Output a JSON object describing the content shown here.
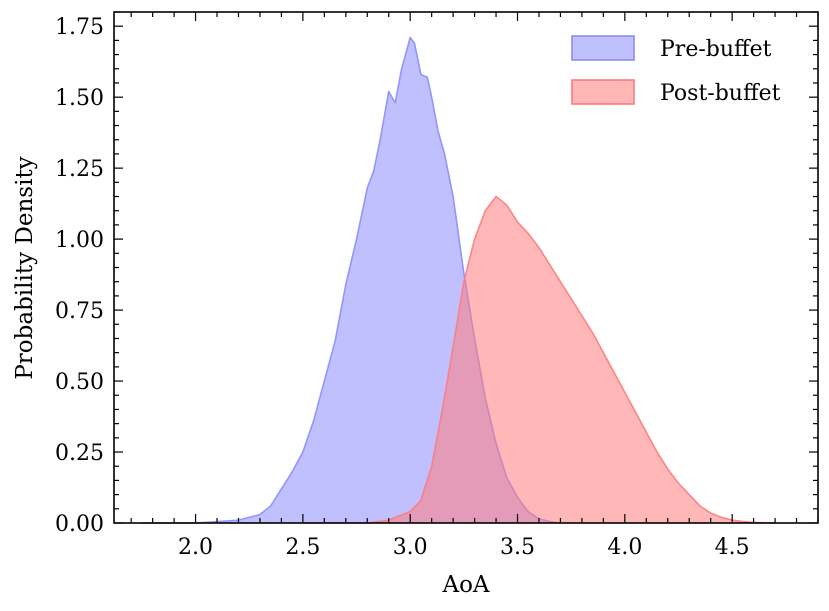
{
  "chart_data": {
    "type": "area",
    "xlabel": "AoA",
    "ylabel": "Probability Density",
    "xlim": [
      1.62,
      4.9
    ],
    "ylim": [
      0,
      1.8
    ],
    "xticks": [
      2.0,
      2.5,
      3.0,
      3.5,
      4.0,
      4.5
    ],
    "xtick_labels": [
      "2.0",
      "2.5",
      "3.0",
      "3.5",
      "4.0",
      "4.5"
    ],
    "yticks": [
      0.0,
      0.25,
      0.5,
      0.75,
      1.0,
      1.25,
      1.5,
      1.75
    ],
    "ytick_labels": [
      "0.00",
      "0.25",
      "0.50",
      "0.75",
      "1.00",
      "1.25",
      "1.50",
      "1.75"
    ],
    "grid": false,
    "legend": {
      "position": "top-right"
    },
    "series": [
      {
        "name": "Pre-buffet",
        "color": "#8c8cff",
        "x": [
          1.75,
          2.0,
          2.2,
          2.3,
          2.35,
          2.4,
          2.45,
          2.5,
          2.55,
          2.6,
          2.65,
          2.7,
          2.75,
          2.8,
          2.83,
          2.86,
          2.9,
          2.93,
          2.96,
          3.0,
          3.02,
          3.05,
          3.08,
          3.1,
          3.13,
          3.16,
          3.2,
          3.25,
          3.3,
          3.35,
          3.4,
          3.45,
          3.5,
          3.55,
          3.6,
          3.65,
          3.7
        ],
        "y": [
          0.0,
          0.0,
          0.01,
          0.03,
          0.06,
          0.12,
          0.18,
          0.25,
          0.36,
          0.5,
          0.64,
          0.84,
          1.0,
          1.18,
          1.24,
          1.35,
          1.52,
          1.48,
          1.6,
          1.71,
          1.69,
          1.58,
          1.57,
          1.5,
          1.38,
          1.3,
          1.15,
          0.88,
          0.65,
          0.44,
          0.28,
          0.16,
          0.09,
          0.04,
          0.015,
          0.005,
          0.0
        ]
      },
      {
        "name": "Post-buffet",
        "color": "#ff7b7b",
        "x": [
          2.5,
          2.8,
          2.9,
          3.0,
          3.05,
          3.1,
          3.15,
          3.2,
          3.25,
          3.3,
          3.35,
          3.4,
          3.45,
          3.5,
          3.55,
          3.6,
          3.65,
          3.7,
          3.75,
          3.8,
          3.85,
          3.9,
          3.95,
          4.0,
          4.05,
          4.1,
          4.15,
          4.2,
          4.25,
          4.3,
          4.35,
          4.4,
          4.45,
          4.5,
          4.55,
          4.6,
          4.7
        ],
        "y": [
          0.0,
          0.0,
          0.01,
          0.04,
          0.08,
          0.2,
          0.4,
          0.62,
          0.85,
          1.0,
          1.1,
          1.15,
          1.12,
          1.06,
          1.02,
          0.97,
          0.91,
          0.85,
          0.79,
          0.73,
          0.67,
          0.6,
          0.53,
          0.46,
          0.39,
          0.32,
          0.25,
          0.19,
          0.14,
          0.1,
          0.06,
          0.035,
          0.02,
          0.01,
          0.005,
          0.002,
          0.0
        ]
      }
    ]
  }
}
